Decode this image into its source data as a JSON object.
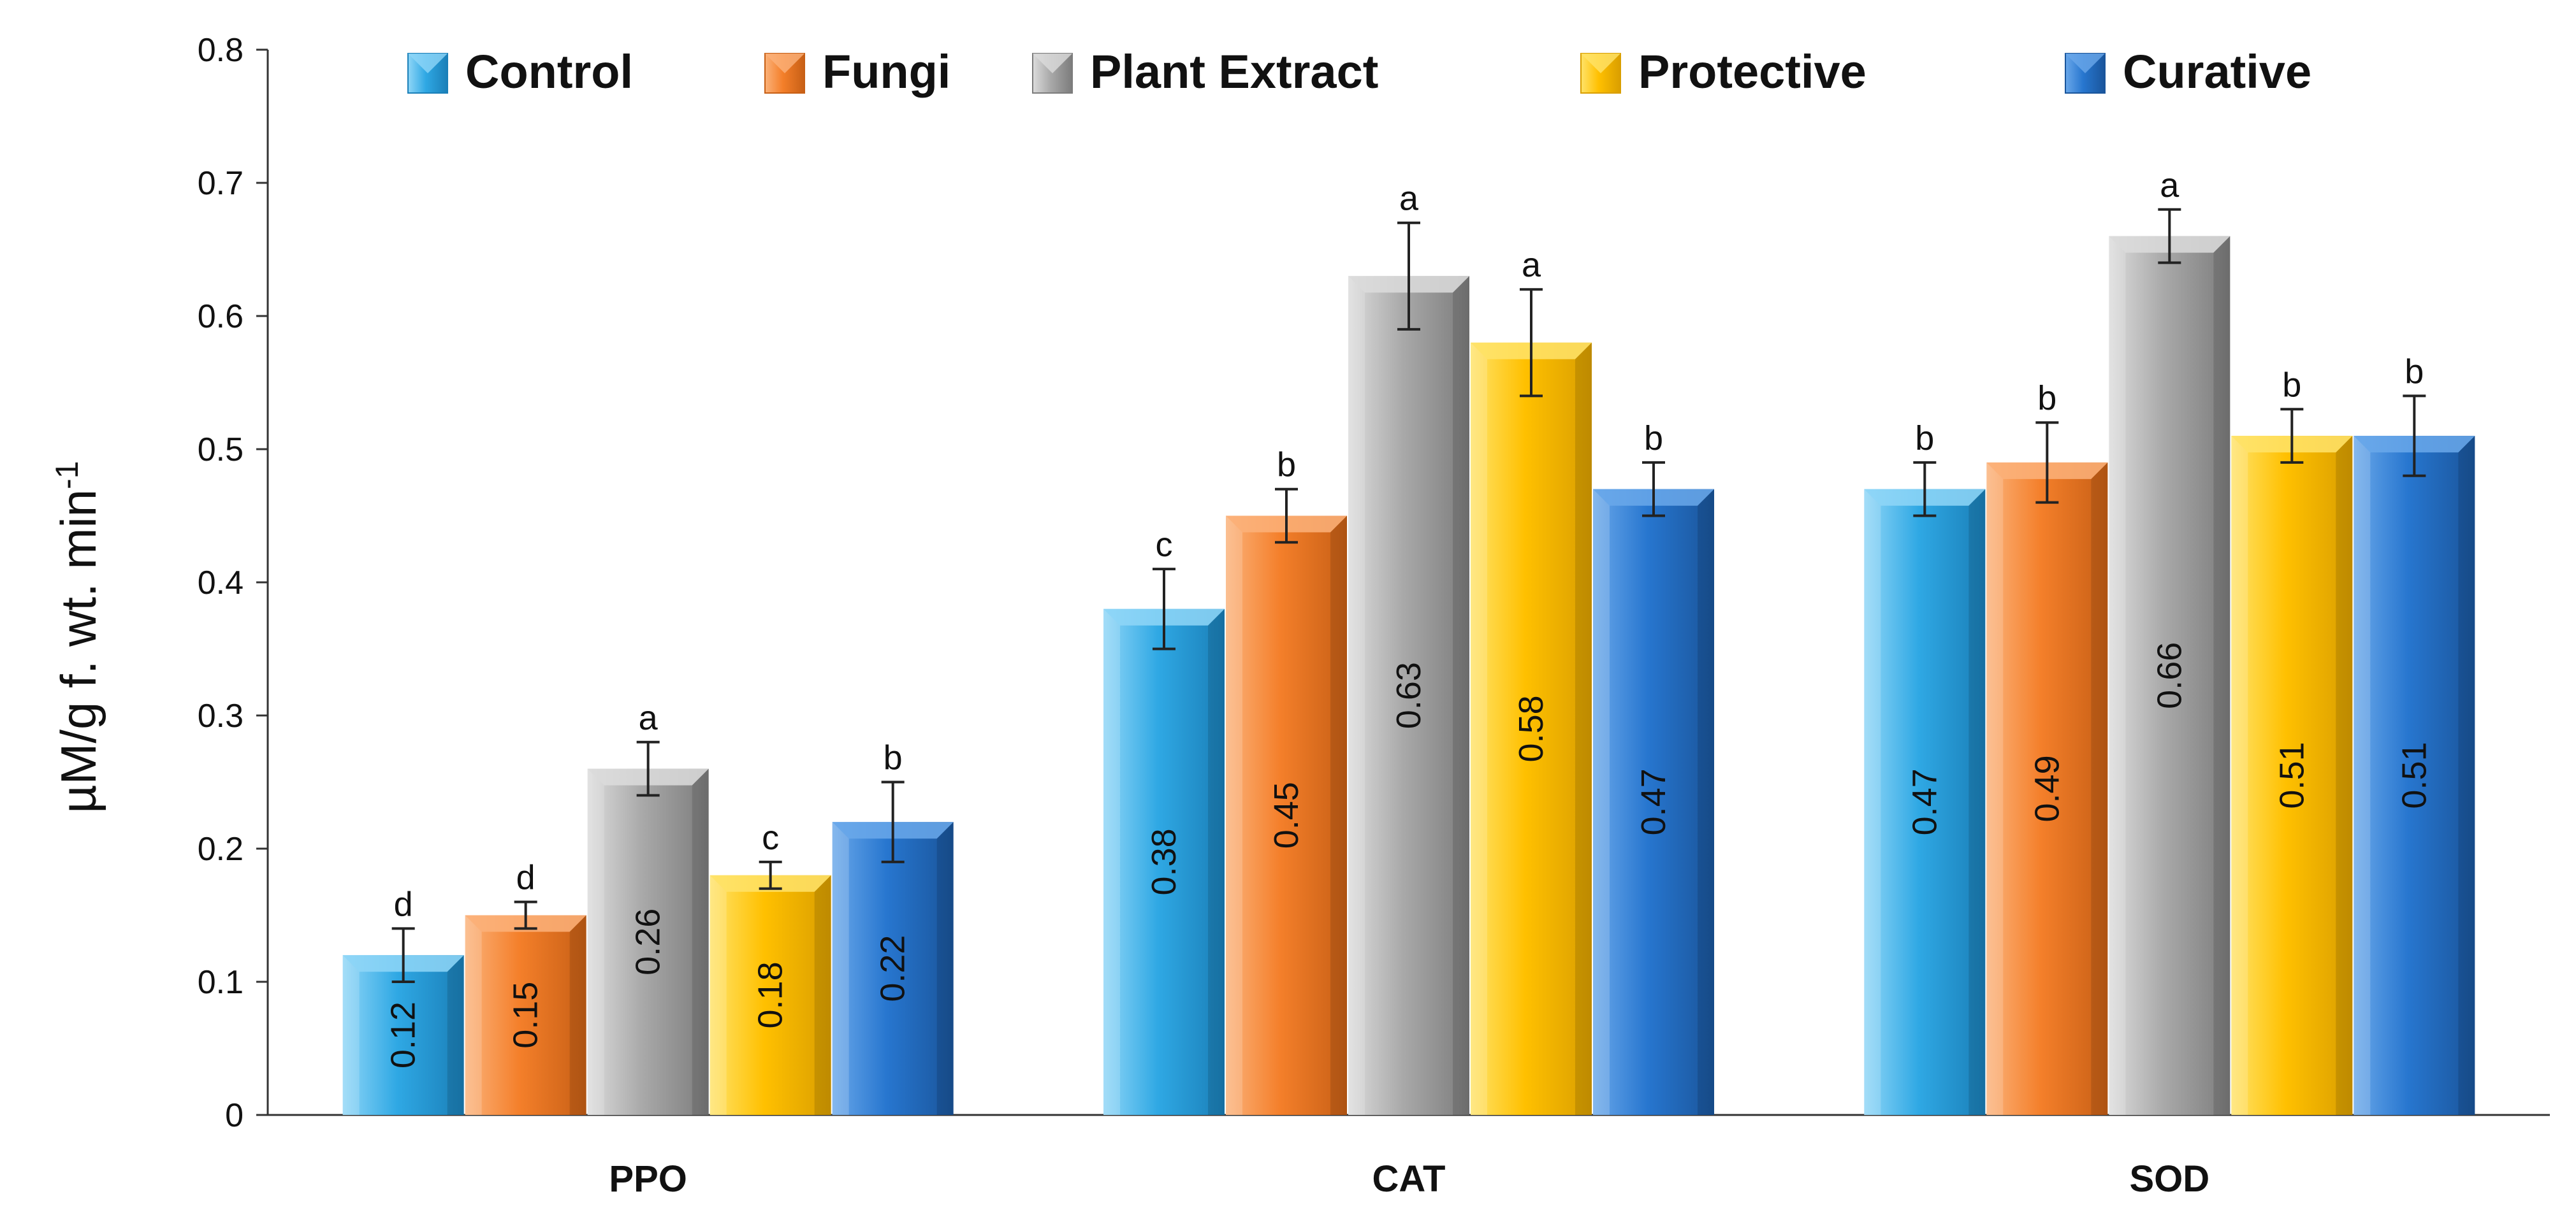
{
  "chart_data": {
    "type": "bar",
    "categories": [
      "PPO",
      "CAT",
      "SOD"
    ],
    "series": [
      {
        "name": "Control",
        "values": [
          0.12,
          0.38,
          0.47
        ],
        "errors": [
          0.02,
          0.03,
          0.02
        ],
        "letters": [
          "d",
          "c",
          "b"
        ],
        "color": "#2fa8e4",
        "light": "#8fd6f7",
        "dark": "#1a7fb8"
      },
      {
        "name": "Fungi",
        "values": [
          0.15,
          0.45,
          0.49
        ],
        "errors": [
          0.01,
          0.02,
          0.03
        ],
        "letters": [
          "d",
          "b",
          "b"
        ],
        "color": "#f47f2a",
        "light": "#fbb27a",
        "dark": "#c75f15"
      },
      {
        "name": "Plant Extract",
        "values": [
          0.26,
          0.63,
          0.66
        ],
        "errors": [
          0.02,
          0.04,
          0.02
        ],
        "letters": [
          "a",
          "a",
          "a"
        ],
        "color": "#a9a9a9",
        "light": "#dcdcdc",
        "dark": "#7c7c7c"
      },
      {
        "name": "Protective",
        "values": [
          0.18,
          0.58,
          0.51
        ],
        "errors": [
          0.01,
          0.04,
          0.02
        ],
        "letters": [
          "c",
          "a",
          "b"
        ],
        "color": "#ffc000",
        "light": "#ffe36a",
        "dark": "#d99e00"
      },
      {
        "name": "Curative",
        "values": [
          0.22,
          0.47,
          0.51
        ],
        "errors": [
          0.03,
          0.02,
          0.03
        ],
        "letters": [
          "b",
          "b",
          "b"
        ],
        "color": "#2776cf",
        "light": "#6aa8ea",
        "dark": "#1a559b"
      }
    ],
    "value_labels": [
      [
        "0.12",
        "0.38",
        "0.47"
      ],
      [
        "0.15",
        "0.45",
        "0.49"
      ],
      [
        "0.26",
        "0.63",
        "0.66"
      ],
      [
        "0.18",
        "0.58",
        "0.51"
      ],
      [
        "0.22",
        "0.47",
        "0.51"
      ]
    ],
    "yticks": [
      "0",
      "0.1",
      "0.2",
      "0.3",
      "0.4",
      "0.5",
      "0.6",
      "0.7",
      "0.8"
    ],
    "ylim": [
      0,
      0.8
    ],
    "ylabel": {
      "main": "µM/g f. wt. min",
      "superscript": "-1"
    },
    "xlabel": "",
    "title": "",
    "legend_position": "top"
  }
}
